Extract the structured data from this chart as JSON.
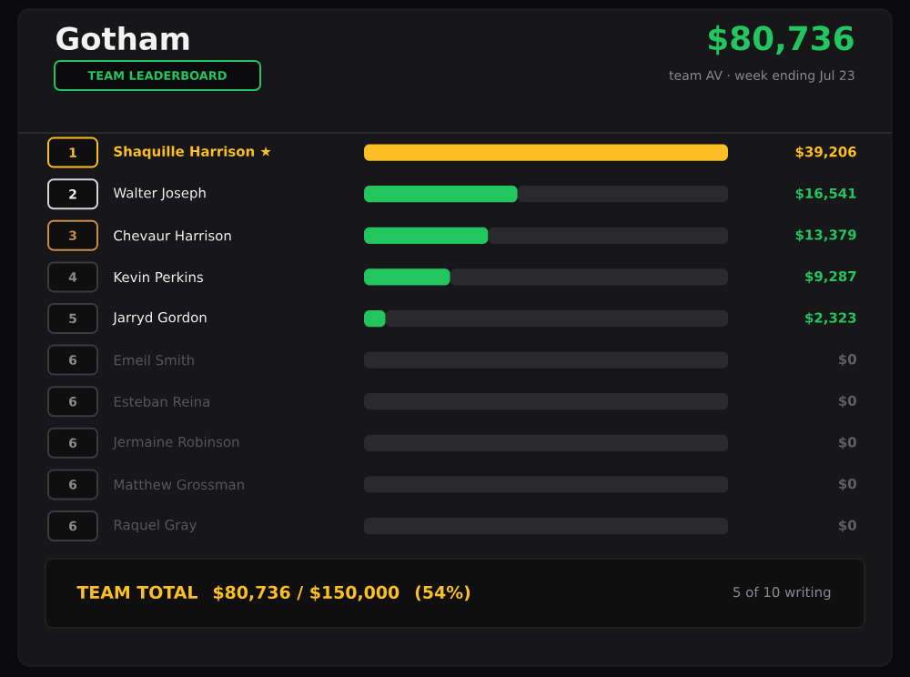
{
  "chart_data": {
    "type": "bar",
    "orientation": "horizontal",
    "stacked": true,
    "title": "Gotham",
    "subtitle": "TEAM LEADERBOARD",
    "categories": [
      "Shaquille Harrison ★",
      "Walter Joseph",
      "Chevaur Harrison",
      "Kevin Perkins",
      "Jarryd Gordon",
      "Emeil Smith",
      "Esteban Reina",
      "Jermaine Robinson",
      "Matthew Grossman",
      "Raquel Gray"
    ],
    "series": [
      {
        "values": [
          39206,
          16541,
          13379,
          9287,
          2323,
          0,
          0,
          0,
          0,
          0
        ],
        "colors": [
          "#fbbf24",
          "#22c55e",
          "#22c55e",
          "#22c55e",
          "#22c55e",
          "#22c55e",
          "#22c55e",
          "#22c55e",
          "#22c55e",
          "#22c55e"
        ],
        "value_labels": [
          "$39,206",
          "$16,541",
          "$13,379",
          "$9,287",
          "$2,323",
          "$0",
          "$0",
          "$0",
          "$0",
          "$0"
        ]
      },
      {
        "color": "#2a2a2e",
        "values": [
          0,
          22665,
          25827,
          29919,
          36883,
          39206,
          39206,
          39206,
          39206,
          39206
        ]
      }
    ],
    "annotations": [
      "$80,736",
      "team AV · week ending Jul 23",
      "TEAM TOTAL   $80,736 / $150,000   (54%)",
      "5 of 10 writing",
      "1",
      "2",
      "3",
      "4",
      "5",
      "6",
      "6",
      "6",
      "6",
      "6"
    ]
  }
}
